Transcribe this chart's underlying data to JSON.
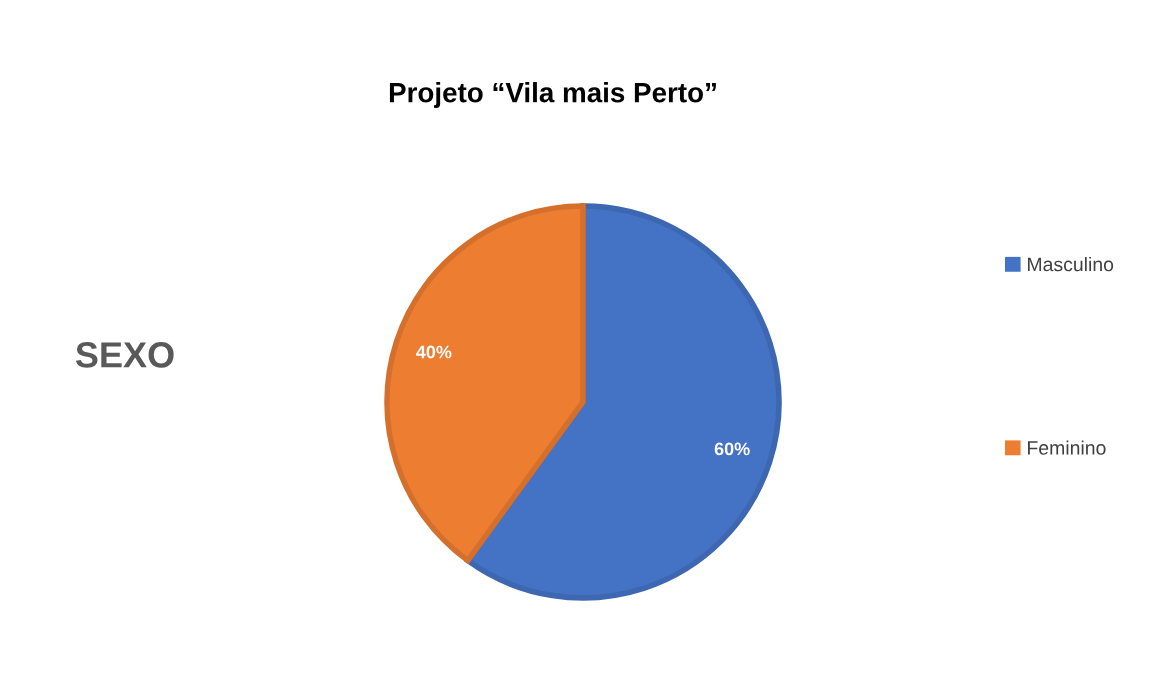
{
  "chart_data": {
    "type": "pie",
    "title": "Projeto “Vila mais Perto”",
    "categories": [
      "Masculino",
      "Feminino"
    ],
    "values": [
      60,
      40
    ],
    "colors": [
      "#4472c4",
      "#ed7d31"
    ],
    "value_labels": [
      "60%",
      "40%"
    ],
    "annotations": [
      "SEXO"
    ],
    "legend": "right"
  }
}
